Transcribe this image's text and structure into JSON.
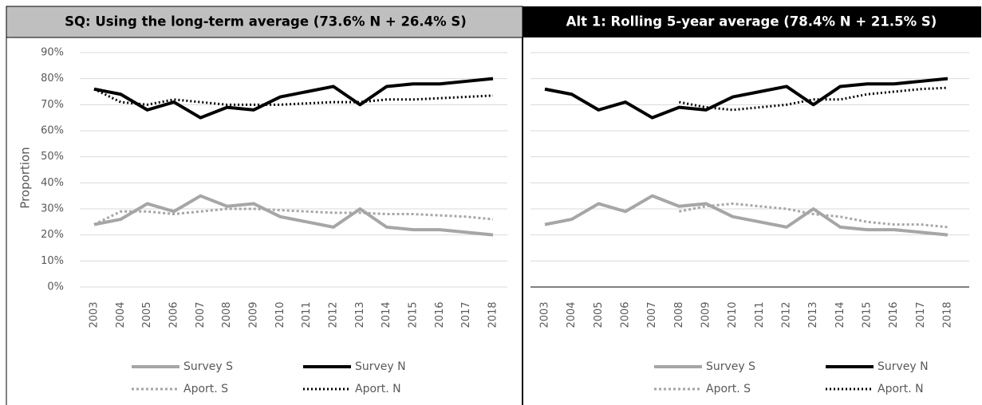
{
  "chart_data": [
    {
      "type": "line",
      "title": "SQ:  Using the long-term average (73.6% N + 26.4% S)",
      "y_label": "Proportion",
      "categories": [
        "2003",
        "2004",
        "2005",
        "2006",
        "2007",
        "2008",
        "2009",
        "2010",
        "2011",
        "2012",
        "2013",
        "2014",
        "2015",
        "2016",
        "2017",
        "2018"
      ],
      "ylim": [
        0,
        90
      ],
      "yticks": [
        {
          "value": 0,
          "label": "0%"
        },
        {
          "value": 10,
          "label": "10%"
        },
        {
          "value": 20,
          "label": "20%"
        },
        {
          "value": 30,
          "label": "30%"
        },
        {
          "value": 40,
          "label": "40%"
        },
        {
          "value": 50,
          "label": "50%"
        },
        {
          "value": 60,
          "label": "60%"
        },
        {
          "value": 70,
          "label": "70%"
        },
        {
          "value": 80,
          "label": "80%"
        },
        {
          "value": 90,
          "label": "90%"
        }
      ],
      "grid": true,
      "series": [
        {
          "name": "Survey S",
          "color": "#a6a6a6",
          "style": "solid",
          "values": [
            24,
            26,
            32,
            29,
            35,
            31,
            32,
            27,
            25,
            23,
            30,
            23,
            22,
            22,
            21,
            20
          ]
        },
        {
          "name": "Survey N",
          "color": "#000000",
          "style": "solid",
          "values": [
            76,
            74,
            68,
            71,
            65,
            69,
            68,
            73,
            75,
            77,
            70,
            77,
            78,
            78,
            79,
            80
          ]
        },
        {
          "name": "Aport. S",
          "color": "#a6a6a6",
          "style": "dotted",
          "values": [
            24,
            29,
            29,
            28,
            29,
            30,
            30,
            29.5,
            29,
            28.5,
            28.5,
            28,
            28,
            27.5,
            27,
            26
          ]
        },
        {
          "name": "Aport. N",
          "color": "#000000",
          "style": "dotted",
          "values": [
            76,
            71,
            70,
            72,
            71,
            70,
            70,
            70,
            70.5,
            71,
            71,
            72,
            72,
            72.5,
            73,
            73.5
          ]
        }
      ]
    },
    {
      "type": "line",
      "title": "Alt 1: Rolling 5-year average (78.4% N + 21.5% S)",
      "categories": [
        "2003",
        "2004",
        "2005",
        "2006",
        "2007",
        "2008",
        "2009",
        "2010",
        "2011",
        "2012",
        "2013",
        "2014",
        "2015",
        "2016",
        "2017",
        "2018"
      ],
      "ylim": [
        0,
        90
      ],
      "yticks": [
        0,
        10,
        20,
        30,
        40,
        50,
        60,
        70,
        80,
        90
      ],
      "grid": true,
      "series": [
        {
          "name": "Survey S",
          "color": "#a6a6a6",
          "style": "solid",
          "values": [
            24,
            26,
            32,
            29,
            35,
            31,
            32,
            27,
            25,
            23,
            30,
            23,
            22,
            22,
            21,
            20
          ]
        },
        {
          "name": "Survey N",
          "color": "#000000",
          "style": "solid",
          "values": [
            76,
            74,
            68,
            71,
            65,
            69,
            68,
            73,
            75,
            77,
            70,
            77,
            78,
            78,
            79,
            80
          ]
        },
        {
          "name": "Aport. S",
          "color": "#a6a6a6",
          "style": "dotted",
          "values": [
            null,
            null,
            null,
            null,
            null,
            29,
            31,
            32,
            31,
            30,
            28,
            27,
            25,
            24,
            24,
            23
          ]
        },
        {
          "name": "Aport. N",
          "color": "#000000",
          "style": "dotted",
          "values": [
            null,
            null,
            null,
            null,
            null,
            71,
            69,
            68,
            69,
            70,
            72,
            72,
            74,
            75,
            76,
            76.5
          ]
        }
      ]
    }
  ]
}
